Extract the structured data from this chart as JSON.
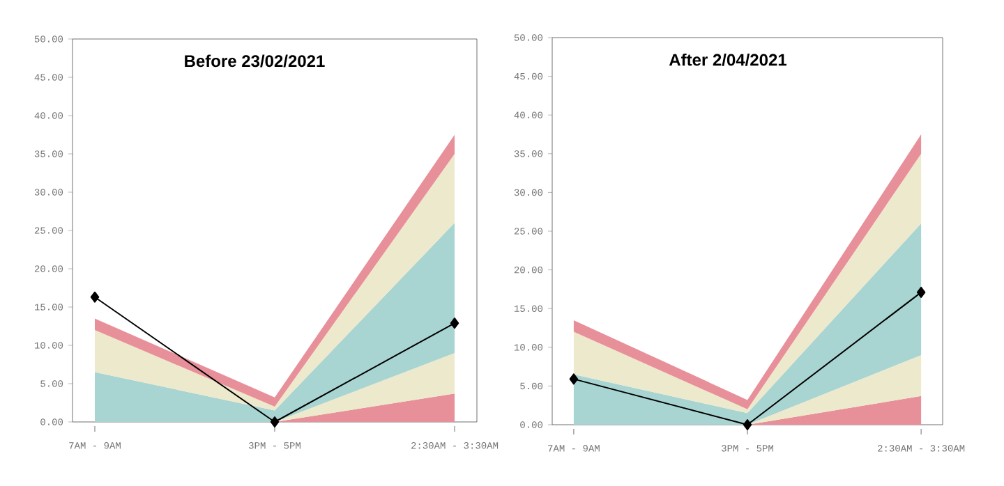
{
  "chart_data": [
    {
      "type": "area",
      "title": "Before 23/02/2021",
      "stacked": true,
      "categories": [
        "7AM - 9AM",
        "3PM - 5PM",
        "2:30AM - 3:30AM"
      ],
      "ylim": [
        0,
        50
      ],
      "yticks": [
        {
          "value": 0,
          "label": "0.00"
        },
        {
          "value": 5,
          "label": "5.00"
        },
        {
          "value": 10,
          "label": "10.00"
        },
        {
          "value": 15,
          "label": "15.00"
        },
        {
          "value": 20,
          "label": "20.00"
        },
        {
          "value": 25,
          "label": "25.00"
        },
        {
          "value": 30,
          "label": "30.00"
        },
        {
          "value": 35,
          "label": "35.00"
        },
        {
          "value": 40,
          "label": "40.00"
        },
        {
          "value": 45,
          "label": "45.00"
        },
        {
          "value": 50,
          "label": "50.00"
        }
      ],
      "series": [
        {
          "color": "#e8909a",
          "values": [
            0,
            0,
            3.7
          ]
        },
        {
          "color": "#ede9cc",
          "values": [
            0,
            0,
            5.3
          ]
        },
        {
          "color": "#a8d4d2",
          "values": [
            6.5,
            1.5,
            17
          ]
        },
        {
          "color": "#ede9cc",
          "values": [
            5.5,
            0.5,
            9
          ]
        },
        {
          "color": "#e8909a",
          "values": [
            1.5,
            1.2,
            2.5
          ]
        },
        {
          "type": "line",
          "color": "#000000",
          "marker": "diamond",
          "values": [
            16.3,
            0,
            12.9
          ]
        }
      ]
    },
    {
      "type": "area",
      "title": "After 2/04/2021",
      "stacked": true,
      "categories": [
        "7AM - 9AM",
        "3PM - 5PM",
        "2:30AM - 3:30AM"
      ],
      "ylim": [
        0,
        50
      ],
      "yticks": [
        {
          "value": 0,
          "label": "0.00"
        },
        {
          "value": 5,
          "label": "5.00"
        },
        {
          "value": 10,
          "label": "10.00"
        },
        {
          "value": 15,
          "label": "15.00"
        },
        {
          "value": 20,
          "label": "20.00"
        },
        {
          "value": 25,
          "label": "25.00"
        },
        {
          "value": 30,
          "label": "30.00"
        },
        {
          "value": 35,
          "label": "35.00"
        },
        {
          "value": 40,
          "label": "40.00"
        },
        {
          "value": 45,
          "label": "45.00"
        },
        {
          "value": 50,
          "label": "50.00"
        }
      ],
      "series": [
        {
          "color": "#e8909a",
          "values": [
            0,
            0,
            3.7
          ]
        },
        {
          "color": "#ede9cc",
          "values": [
            0,
            0,
            5.3
          ]
        },
        {
          "color": "#a8d4d2",
          "values": [
            6.5,
            1.5,
            17
          ]
        },
        {
          "color": "#ede9cc",
          "values": [
            5.5,
            0.5,
            9
          ]
        },
        {
          "color": "#e8909a",
          "values": [
            1.5,
            1.2,
            2.5
          ]
        },
        {
          "type": "line",
          "color": "#000000",
          "marker": "diamond",
          "values": [
            5.9,
            0,
            17.1
          ]
        }
      ]
    }
  ]
}
